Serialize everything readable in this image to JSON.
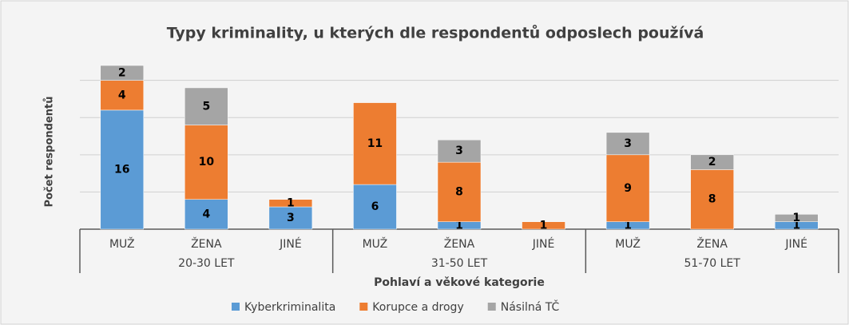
{
  "chart_data": {
    "type": "stacked_bar",
    "title": "Typy kriminality, u kterých dle respondentů odposlech používá",
    "x_label": "Pohlaví a věkové kategorie",
    "y_label": "Počet respondentů",
    "categories": [
      "MUŽ",
      "ŽENA",
      "JINÉ",
      "MUŽ",
      "ŽENA",
      "JINÉ",
      "MUŽ",
      "ŽENA",
      "JINÉ"
    ],
    "groups": [
      "20-30 LET",
      "31-50 LET",
      "51-70 LET"
    ],
    "series": [
      {
        "name": "Kyberkriminalita",
        "color": "#5b9bd5",
        "values": [
          16,
          4,
          3,
          6,
          1,
          null,
          1,
          null,
          1
        ]
      },
      {
        "name": "Korupce a drogy",
        "color": "#ed7d31",
        "values": [
          4,
          10,
          1,
          11,
          8,
          1,
          9,
          8,
          null
        ]
      },
      {
        "name": "Násilná TČ",
        "color": "#a5a5a5",
        "values": [
          2,
          5,
          null,
          null,
          3,
          null,
          3,
          2,
          1
        ]
      }
    ],
    "ylim": [
      0,
      22
    ],
    "yticks": [
      0,
      5,
      10,
      15,
      20
    ],
    "grid": true,
    "legend": "bottom"
  }
}
